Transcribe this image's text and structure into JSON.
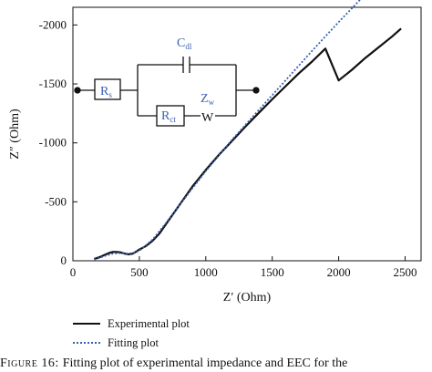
{
  "chart_data": {
    "type": "line",
    "xlabel_main": "Z",
    "xlabel_prime": "′",
    "xlabel_unit": " (Ohm)",
    "ylabel_main": "Z",
    "ylabel_prime": "″",
    "ylabel_unit": " (Ohm)",
    "xlim": [
      0,
      2620
    ],
    "ylim": [
      0,
      -2150
    ],
    "xticks": [
      0,
      500,
      1000,
      1500,
      2000,
      2500
    ],
    "yticks": [
      0,
      -500,
      -1000,
      -1500,
      -2000
    ],
    "xtick_labels": [
      "0",
      "500",
      "1000",
      "1500",
      "2000",
      "2500"
    ],
    "ytick_labels": [
      "0",
      "-500",
      "-1000",
      "-1500",
      "-2000"
    ],
    "legend_position": "bottom-left, below plot",
    "series": [
      {
        "name": "Experimental plot",
        "color": "#111111",
        "style": "solid",
        "x": [
          160,
          200,
          240,
          270,
          300,
          330,
          360,
          390,
          420,
          450,
          480,
          500,
          550,
          600,
          650,
          700,
          800,
          900,
          1000,
          1100,
          1200,
          1300,
          1400,
          1500,
          1600,
          1700,
          1800,
          1900,
          2000,
          2100,
          2200,
          2300,
          2400,
          2470
        ],
        "y": [
          -15,
          -30,
          -50,
          -65,
          -75,
          -75,
          -70,
          -60,
          -55,
          -60,
          -80,
          -95,
          -125,
          -170,
          -230,
          -310,
          -470,
          -630,
          -770,
          -900,
          -1020,
          -1140,
          -1255,
          -1370,
          -1480,
          -1590,
          -1690,
          -1800,
          -1530,
          -1620,
          -1720,
          -1810,
          -1900,
          -1970
        ]
      },
      {
        "name": "Fitting plot",
        "color": "#3a5fb4",
        "style": "dotted",
        "x": [
          160,
          200,
          250,
          300,
          350,
          400,
          450,
          500,
          600,
          700,
          800,
          900,
          1000,
          1200,
          1400,
          1600,
          1800,
          2000,
          2200,
          2400
        ],
        "y": [
          -10,
          -25,
          -45,
          -60,
          -65,
          -60,
          -65,
          -85,
          -180,
          -320,
          -470,
          -615,
          -760,
          -1030,
          -1280,
          -1530,
          -1780,
          -2025,
          -2260,
          -2480
        ]
      }
    ]
  },
  "circuit": {
    "rs_main": "R",
    "rs_sub": "s",
    "rct_main": "R",
    "rct_sub": "ct",
    "cdl_main": "C",
    "cdl_sub": "dl",
    "zw_main": "Z",
    "zw_sub": "w",
    "warburg_symbol": "W",
    "label_color": "#3a5fb4"
  },
  "caption": {
    "label": "Figure 16:",
    "text": "Fitting plot of experimental impedance and EEC for the"
  }
}
